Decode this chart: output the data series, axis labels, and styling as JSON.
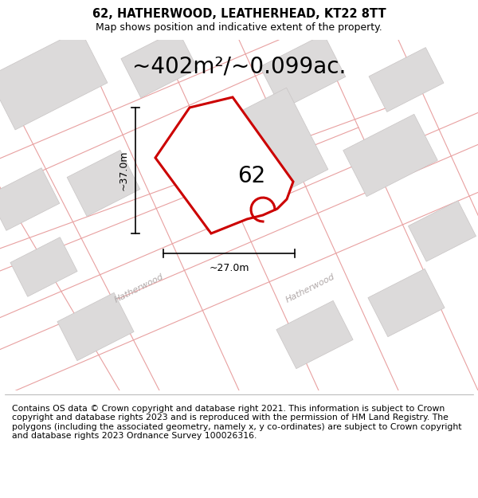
{
  "title_line1": "62, HATHERWOOD, LEATHERHEAD, KT22 8TT",
  "title_line2": "Map shows position and indicative extent of the property.",
  "area_text": "~402m²/~0.099ac.",
  "property_label": "62",
  "dim_vertical": "~37.0m",
  "dim_horizontal": "~27.0m",
  "footer_text": "Contains OS data © Crown copyright and database right 2021. This information is subject to Crown copyright and database rights 2023 and is reproduced with the permission of HM Land Registry. The polygons (including the associated geometry, namely x, y co-ordinates) are subject to Crown copyright and database rights 2023 Ordnance Survey 100026316.",
  "map_bg": "#f0eded",
  "property_fill": "#ffffff",
  "property_color": "#cc0000",
  "street_color": "#e8a0a0",
  "building_color": "#dcdada",
  "building_edge": "#c8c4c4",
  "title_fontsize": 10.5,
  "subtitle_fontsize": 9,
  "area_fontsize": 20,
  "label_fontsize": 20,
  "dim_fontsize": 9,
  "footer_fontsize": 7.8
}
